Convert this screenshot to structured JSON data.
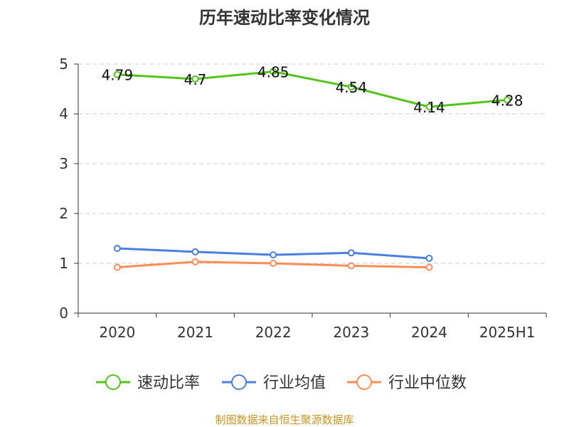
{
  "chart_data": {
    "type": "line",
    "title": "历年速动比率变化情况",
    "categories": [
      "2020",
      "2021",
      "2022",
      "2023",
      "2024",
      "2025H1"
    ],
    "ylim": [
      0,
      5
    ],
    "yticks": [
      "0",
      "1",
      "2",
      "3",
      "4",
      "5"
    ],
    "grid": true,
    "legend_position": "bottom",
    "series": [
      {
        "name": "速动比率",
        "color": "#52c41a",
        "values": [
          4.79,
          4.7,
          4.85,
          4.54,
          4.14,
          4.28
        ],
        "labels": [
          "4.79",
          "4.7",
          "4.85",
          "4.54",
          "4.14",
          "4.28"
        ]
      },
      {
        "name": "行业均值",
        "color": "#4a7fe0",
        "values": [
          1.3,
          1.23,
          1.17,
          1.21,
          1.1,
          null
        ]
      },
      {
        "name": "行业中位数",
        "color": "#ff8c55",
        "values": [
          0.92,
          1.03,
          1.0,
          0.95,
          0.92,
          null
        ]
      }
    ]
  },
  "footer": {
    "source": "制图数据来自恒生聚源数据库",
    "source_color": "#c8961e"
  }
}
